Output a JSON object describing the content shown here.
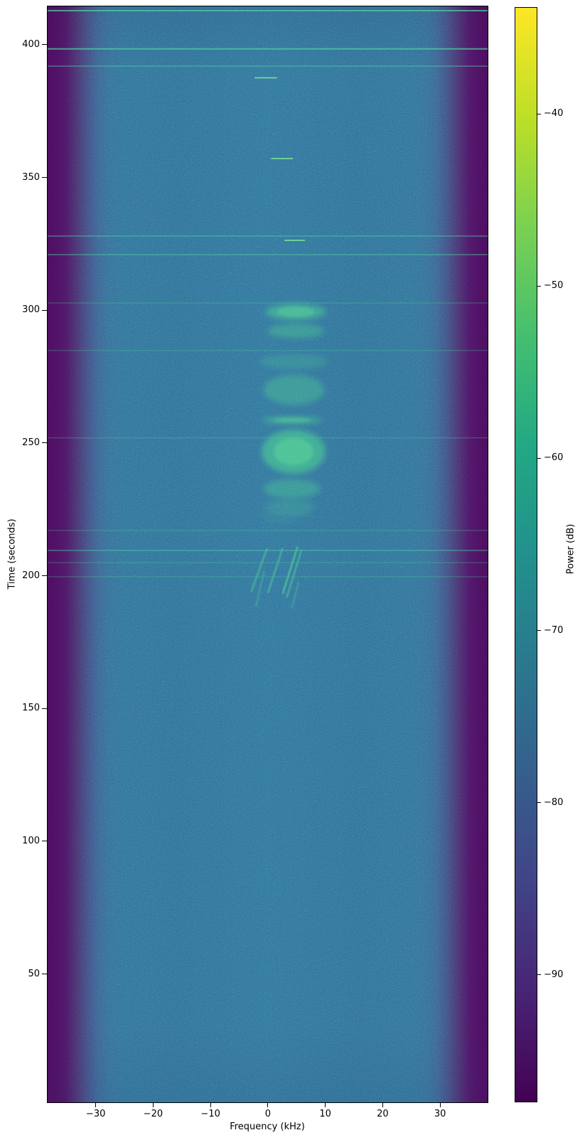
{
  "figure": {
    "kind": "matplotlib-spectrogram",
    "background_color": "#ffffff",
    "axes_edge_color": "#000000"
  },
  "chart_data": {
    "type": "heatmap",
    "subtype": "spectrogram-waterfall",
    "title": "",
    "xlabel": "Frequency (kHz)",
    "ylabel": "Time (seconds)",
    "colorbar_label": "Power (dB)",
    "colormap": "viridis",
    "x_range_khz": [
      -38.5,
      38.4
    ],
    "y_range_s": [
      1.4,
      414.7
    ],
    "colorbar_range_db": [
      -97.4,
      -33.8
    ],
    "x_ticks": [
      {
        "v": -30,
        "label": "−30"
      },
      {
        "v": -20,
        "label": "−20"
      },
      {
        "v": -10,
        "label": "−10"
      },
      {
        "v": 0,
        "label": "0"
      },
      {
        "v": 10,
        "label": "10"
      },
      {
        "v": 20,
        "label": "20"
      },
      {
        "v": 30,
        "label": "30"
      }
    ],
    "y_ticks": [
      {
        "v": 400,
        "label": "400"
      },
      {
        "v": 350,
        "label": "350"
      },
      {
        "v": 300,
        "label": "300"
      },
      {
        "v": 250,
        "label": "250"
      },
      {
        "v": 200,
        "label": "200"
      },
      {
        "v": 150,
        "label": "150"
      },
      {
        "v": 100,
        "label": "100"
      },
      {
        "v": 50,
        "label": "50"
      }
    ],
    "colorbar_ticks": [
      {
        "v": -40,
        "label": "−40"
      },
      {
        "v": -50,
        "label": "−50"
      },
      {
        "v": -60,
        "label": "−60"
      },
      {
        "v": -70,
        "label": "−70"
      },
      {
        "v": -80,
        "label": "−80"
      },
      {
        "v": -90,
        "label": "−90"
      }
    ],
    "noise_floor_db": -78,
    "usable_band_khz": [
      -33,
      33
    ],
    "features": {
      "rfi_lines": [
        {
          "time_s": 413.1,
          "level": "strong"
        },
        {
          "time_s": 398.7,
          "level": "strong"
        },
        {
          "time_s": 392.2,
          "level": "medium"
        },
        {
          "time_s": 328.2,
          "level": "medium"
        },
        {
          "time_s": 321.2,
          "level": "medium"
        },
        {
          "time_s": 303.0,
          "level": "faint"
        },
        {
          "time_s": 285.1,
          "level": "faint"
        },
        {
          "time_s": 252.2,
          "level": "faint"
        },
        {
          "time_s": 217.3,
          "level": "faint"
        },
        {
          "time_s": 209.8,
          "level": "medium"
        },
        {
          "time_s": 205.2,
          "level": "faint"
        },
        {
          "time_s": 199.9,
          "level": "faint"
        }
      ],
      "bursts": [
        {
          "time_s": 387.8,
          "f1_khz": -6.7,
          "f2_khz": 4.1,
          "level": "strong"
        },
        {
          "time_s": 357.4,
          "f1_khz": -3.7,
          "f2_khz": 6.8,
          "level": "strong"
        },
        {
          "time_s": 326.6,
          "f1_khz": -1.1,
          "f2_khz": 8.7,
          "level": "medium"
        }
      ],
      "blobs": [
        {
          "t1_s": 296.5,
          "t2_s": 302.8,
          "f1_khz": -0.6,
          "f2_khz": 10.0,
          "level": "strong"
        },
        {
          "t1_s": 289.7,
          "t2_s": 295.2,
          "f1_khz": -0.2,
          "f2_khz": 9.7,
          "level": "medium"
        },
        {
          "t1_s": 278.1,
          "t2_s": 283.7,
          "f1_khz": -1.5,
          "f2_khz": 10.3,
          "level": "faint"
        },
        {
          "t1_s": 264.6,
          "t2_s": 275.9,
          "f1_khz": -0.9,
          "f2_khz": 9.7,
          "level": "medium"
        },
        {
          "t1_s": 257.5,
          "t2_s": 260.2,
          "f1_khz": -1.1,
          "f2_khz": 9.3,
          "level": "strong"
        },
        {
          "t1_s": 238.7,
          "t2_s": 255.3,
          "f1_khz": -1.2,
          "f2_khz": 9.9,
          "level": "bright"
        },
        {
          "t1_s": 229.4,
          "t2_s": 236.6,
          "f1_khz": -0.9,
          "f2_khz": 9.0,
          "level": "medium"
        },
        {
          "t1_s": 223.5,
          "t2_s": 228.9,
          "f1_khz": -0.6,
          "f2_khz": 8.0,
          "level": "faint"
        },
        {
          "t1_s": 222.8,
          "t2_s": 224.1,
          "f1_khz": -1.9,
          "f2_khz": 8.0,
          "level": "faint"
        },
        {
          "t1_s": 220.5,
          "t2_s": 221.6,
          "f1_khz": -1.1,
          "f2_khz": 5.3,
          "level": "faint"
        }
      ],
      "gaps": [
        {
          "time_s": 295.8
        },
        {
          "time_s": 277.6
        },
        {
          "time_s": 270.9
        },
        {
          "time_s": 260.2
        },
        {
          "time_s": 256.3
        },
        {
          "time_s": 243.6
        },
        {
          "time_s": 237.6
        }
      ],
      "chirps": [
        {
          "t1_s": 194.4,
          "f1_khz": -3.0,
          "t2_s": 210.4,
          "f2_khz": -0.3,
          "level": "medium"
        },
        {
          "t1_s": 194.0,
          "f1_khz": -0.1,
          "t2_s": 210.4,
          "f2_khz": 2.4,
          "level": "medium"
        },
        {
          "t1_s": 193.8,
          "f1_khz": 2.5,
          "t2_s": 211.0,
          "f2_khz": 5.0,
          "level": "strong"
        },
        {
          "t1_s": 192.3,
          "f1_khz": 3.2,
          "t2_s": 209.8,
          "f2_khz": 5.7,
          "level": "medium"
        },
        {
          "t1_s": 188.9,
          "f1_khz": -2.2,
          "t2_s": 201.8,
          "f2_khz": -0.8,
          "level": "faint"
        },
        {
          "t1_s": 188.4,
          "f1_khz": 4.1,
          "t2_s": 197.8,
          "f2_khz": 5.2,
          "level": "faint"
        }
      ]
    }
  }
}
